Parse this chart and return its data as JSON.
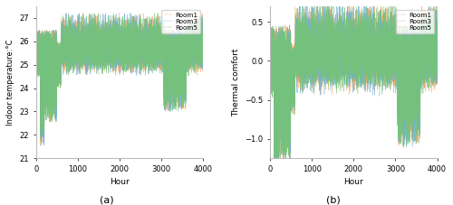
{
  "title_a": "(a)",
  "title_b": "(b)",
  "xlabel": "Hour",
  "ylabel_a": "Indoor temperature:°C",
  "ylabel_b": "Thermal comfort",
  "xlim": [
    0,
    4000
  ],
  "ylim_a": [
    21,
    27.5
  ],
  "ylim_b": [
    -1.25,
    0.7
  ],
  "yticks_a": [
    21,
    22,
    23,
    24,
    25,
    26,
    27
  ],
  "yticks_b": [
    -1.0,
    -0.5,
    0.0,
    0.5
  ],
  "xticks": [
    0,
    1000,
    2000,
    3000,
    4000
  ],
  "legend_labels": [
    "Room1",
    "Room3",
    "Room5"
  ],
  "colors": [
    "#f4a060",
    "#6baed6",
    "#74c476"
  ],
  "n_hours": 4000,
  "seed": 42
}
